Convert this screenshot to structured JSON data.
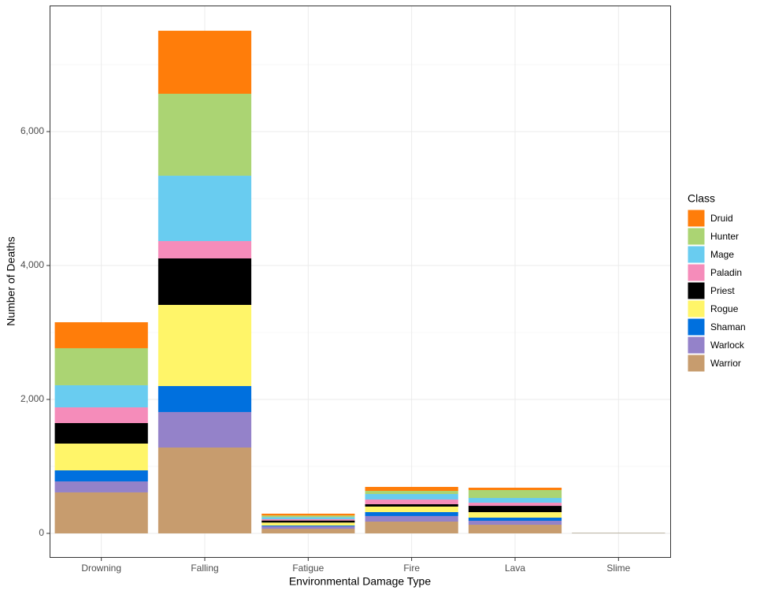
{
  "chart_data": {
    "type": "stacked_bar",
    "x_label": "Environmental Damage Type",
    "y_label": "Number of Deaths",
    "legend_title": "Class",
    "legend_position": "right",
    "grid": true,
    "categories": [
      "Drowning",
      "Falling",
      "Fatigue",
      "Fire",
      "Lava",
      "Slime"
    ],
    "series": [
      {
        "name": "Druid",
        "color": "#FF7D0A",
        "values": [
          388,
          941,
          27,
          59,
          35,
          1
        ]
      },
      {
        "name": "Hunter",
        "color": "#ABD473",
        "values": [
          553,
          1224,
          25,
          47,
          118,
          1
        ]
      },
      {
        "name": "Mage",
        "color": "#69CCF0",
        "values": [
          330,
          976,
          30,
          82,
          71,
          1
        ]
      },
      {
        "name": "Paladin",
        "color": "#F58CBA",
        "values": [
          235,
          259,
          20,
          71,
          47,
          1
        ]
      },
      {
        "name": "Priest",
        "color": "#000000",
        "values": [
          306,
          694,
          30,
          35,
          94,
          1
        ]
      },
      {
        "name": "Rogue",
        "color": "#FFF569",
        "values": [
          400,
          1212,
          45,
          82,
          82,
          1
        ]
      },
      {
        "name": "Shaman",
        "color": "#0070DE",
        "values": [
          165,
          388,
          12,
          59,
          47,
          1
        ]
      },
      {
        "name": "Warlock",
        "color": "#9482C9",
        "values": [
          164,
          530,
          35,
          83,
          59,
          1
        ]
      },
      {
        "name": "Warrior",
        "color": "#C79C6E",
        "values": [
          612,
          1282,
          70,
          176,
          129,
          3
        ]
      }
    ],
    "ylim": [
      -365,
      7871
    ],
    "yticks": [
      0,
      {
        "value": 2000,
        "label": "2,000"
      },
      {
        "value": 4000,
        "label": "4,000"
      },
      {
        "value": 6000,
        "label": "6,000"
      }
    ],
    "minor_yticks": [
      1000,
      3000,
      5000,
      7000
    ]
  }
}
